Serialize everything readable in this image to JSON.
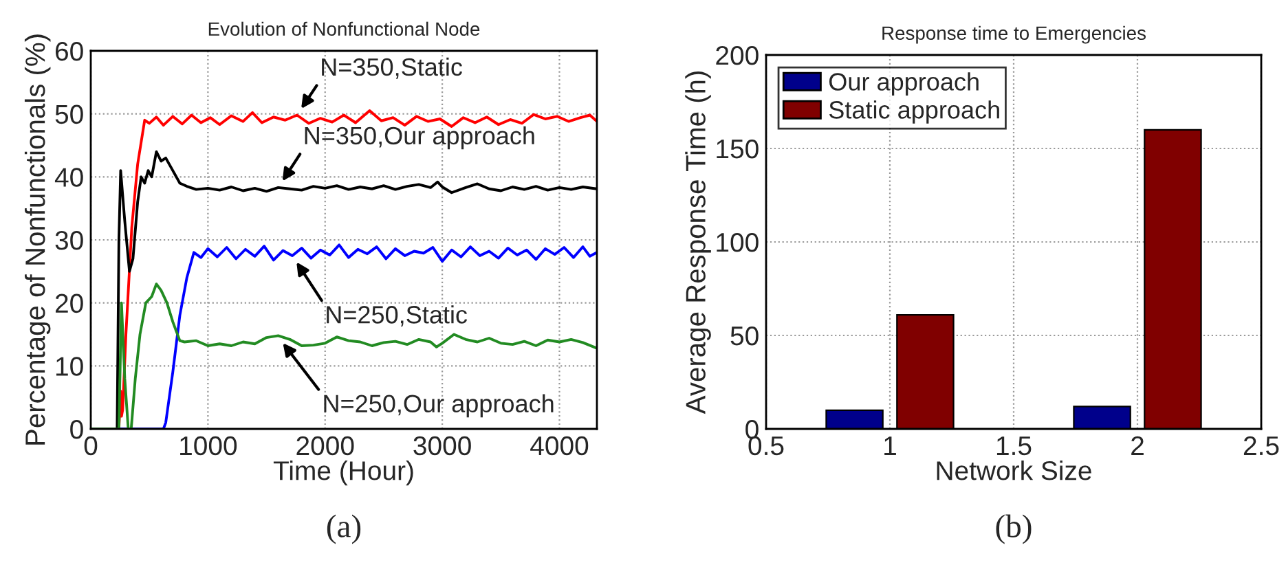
{
  "chart_data": [
    {
      "type": "line",
      "title": "Evolution of Nonfunctional Node",
      "xlabel": "Time (Hour)",
      "ylabel": "Percentage of Nonfunctionals (%)",
      "xlim": [
        0,
        4320
      ],
      "xticks": [
        0,
        1000,
        2000,
        3000,
        4000
      ],
      "ylim": [
        0,
        60
      ],
      "yticks": [
        0,
        10,
        20,
        30,
        40,
        50,
        60
      ],
      "grid": true,
      "legend": false,
      "marker": "none",
      "line_style": "solid",
      "series": [
        {
          "color": "#ff0000",
          "x": [
            0,
            240,
            255,
            262,
            272,
            300,
            350,
            400,
            460,
            500,
            560,
            620,
            700,
            780,
            860,
            940,
            1020,
            1100,
            1200,
            1300,
            1380,
            1460,
            1560,
            1660,
            1760,
            1860,
            1960,
            2060,
            2160,
            2260,
            2380,
            2480,
            2580,
            2680,
            2780,
            2880,
            2980,
            3080,
            3180,
            3280,
            3380,
            3480,
            3580,
            3680,
            3780,
            3880,
            3980,
            4080,
            4180,
            4260,
            4320
          ],
          "values": [
            0,
            0,
            6,
            2,
            3,
            15,
            32,
            42,
            49,
            48.5,
            49.5,
            48.2,
            49.6,
            48.4,
            49.8,
            48.6,
            49.4,
            48.3,
            49.7,
            48.8,
            50.2,
            48.6,
            49.5,
            49.0,
            49.8,
            48.5,
            49.3,
            48.7,
            49.8,
            48.6,
            50.5,
            48.9,
            49.4,
            48.2,
            49.6,
            48.8,
            49.2,
            48.0,
            49.4,
            48.6,
            49.5,
            48.3,
            49.1,
            48.5,
            49.9,
            49.2,
            49.6,
            48.8,
            49.4,
            49.8,
            48.8
          ]
        },
        {
          "color": "#000000",
          "x": [
            0,
            225,
            240,
            255,
            290,
            330,
            360,
            400,
            430,
            460,
            490,
            520,
            560,
            600,
            640,
            700,
            760,
            820,
            900,
            1000,
            1100,
            1200,
            1300,
            1400,
            1500,
            1600,
            1700,
            1800,
            1900,
            2000,
            2100,
            2200,
            2300,
            2400,
            2500,
            2600,
            2700,
            2800,
            2900,
            2960,
            3000,
            3080,
            3200,
            3300,
            3400,
            3500,
            3600,
            3700,
            3800,
            3900,
            4000,
            4100,
            4200,
            4320
          ],
          "values": [
            0,
            0,
            30,
            41,
            33,
            25,
            27,
            36,
            40,
            39,
            41,
            40,
            44,
            42.5,
            43,
            41,
            39,
            38.5,
            38,
            38.2,
            37.9,
            38.4,
            37.8,
            38.2,
            37.7,
            38.3,
            38.1,
            37.9,
            38.5,
            38.2,
            38.6,
            38.0,
            38.4,
            38.1,
            38.6,
            38.0,
            38.5,
            38.8,
            38.3,
            39.2,
            38.4,
            37.5,
            38.3,
            38.9,
            38.1,
            37.8,
            38.4,
            38.0,
            38.5,
            37.9,
            38.3,
            38.0,
            38.4,
            38.1
          ]
        },
        {
          "color": "#0000ff",
          "x": [
            0,
            620,
            640,
            700,
            760,
            820,
            880,
            940,
            1000,
            1080,
            1160,
            1240,
            1320,
            1400,
            1480,
            1560,
            1640,
            1720,
            1800,
            1880,
            1960,
            2040,
            2120,
            2200,
            2280,
            2360,
            2440,
            2520,
            2600,
            2680,
            2760,
            2840,
            2920,
            3000,
            3080,
            3160,
            3240,
            3320,
            3400,
            3480,
            3560,
            3640,
            3720,
            3800,
            3880,
            3960,
            4040,
            4120,
            4200,
            4260,
            4320
          ],
          "values": [
            0,
            0,
            1,
            9,
            18,
            24,
            28,
            27.2,
            28.6,
            27.3,
            28.8,
            27.0,
            28.5,
            27.4,
            29.0,
            26.8,
            28.3,
            27.5,
            28.7,
            27.1,
            28.4,
            27.6,
            29.2,
            27.2,
            28.5,
            27.8,
            28.9,
            27.0,
            28.6,
            27.5,
            28.2,
            27.9,
            28.8,
            26.6,
            28.4,
            27.3,
            28.9,
            27.5,
            28.2,
            27.1,
            28.7,
            27.6,
            28.4,
            26.9,
            28.6,
            27.7,
            28.8,
            27.2,
            28.9,
            27.4,
            28.0
          ]
        },
        {
          "color": "#228b22",
          "x": [
            0,
            240,
            262,
            290,
            320,
            345,
            380,
            420,
            470,
            520,
            560,
            600,
            650,
            700,
            760,
            800,
            900,
            1000,
            1100,
            1200,
            1300,
            1400,
            1500,
            1600,
            1700,
            1800,
            1900,
            2000,
            2100,
            2200,
            2300,
            2400,
            2500,
            2600,
            2700,
            2800,
            2900,
            2950,
            3000,
            3100,
            3200,
            3300,
            3400,
            3500,
            3600,
            3700,
            3800,
            3900,
            4000,
            4100,
            4200,
            4320
          ],
          "values": [
            0,
            0,
            20,
            8,
            0,
            0,
            8,
            15,
            20,
            21,
            23,
            22,
            20,
            17,
            14,
            13.8,
            14,
            13.2,
            13.5,
            13.2,
            13.8,
            13.5,
            14.5,
            14.8,
            14.2,
            13.2,
            13.3,
            13.6,
            14.6,
            14.0,
            13.8,
            13.2,
            13.7,
            13.9,
            13.4,
            14.2,
            13.8,
            13.0,
            13.6,
            15.0,
            14.2,
            13.8,
            14.4,
            13.6,
            13.4,
            13.9,
            13.2,
            14.1,
            13.8,
            14.2,
            13.7,
            12.8
          ]
        }
      ],
      "annotations": [
        {
          "text": "N=350,Static",
          "x": 1760,
          "y": 49.8
        },
        {
          "text": "N=350,Our approach",
          "x": 1600,
          "y": 38.3
        },
        {
          "text": "N=250,Static",
          "x": 1720,
          "y": 27.5
        },
        {
          "text": "N=250,Our approach",
          "x": 1600,
          "y": 14.6
        },
        "(a)"
      ]
    },
    {
      "type": "bar",
      "title": "Response time to Emergencies",
      "xlabel": "Network Size",
      "ylabel": "Average Response Time (h)",
      "x": [
        1,
        2
      ],
      "xlim": [
        0.5,
        2.5
      ],
      "xticks": [
        0.5,
        1,
        1.5,
        2,
        2.5
      ],
      "ylim": [
        0,
        200
      ],
      "yticks": [
        0,
        50,
        100,
        150,
        200
      ],
      "grid": true,
      "legend": "top left",
      "series": [
        {
          "name": "Our approach",
          "color": "#00008b",
          "values": [
            10,
            12
          ]
        },
        {
          "name": "Static approach",
          "color": "#800000",
          "values": [
            61,
            160
          ]
        }
      ],
      "annotations": [
        "(b)"
      ]
    }
  ]
}
